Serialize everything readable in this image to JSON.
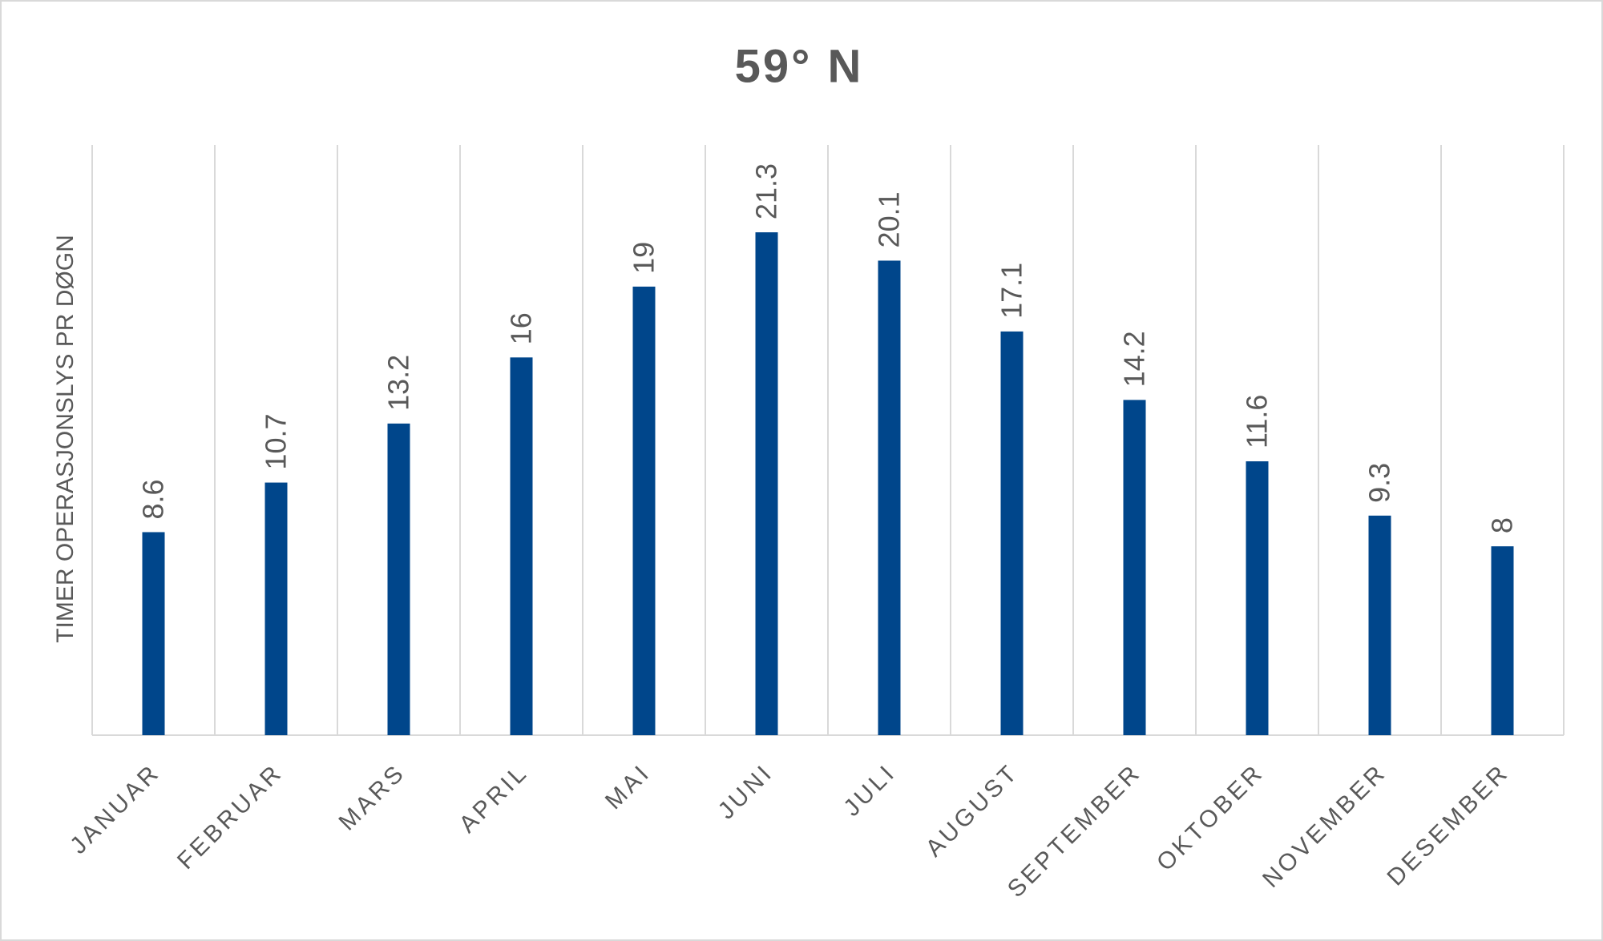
{
  "chart_data": {
    "type": "bar",
    "title": "59° N",
    "y_label": "TIMER OPERASJONSLYS PR DØGN",
    "categories": [
      "JANUAR",
      "FEBRUAR",
      "MARS",
      "APRIL",
      "MAI",
      "JUNI",
      "JULI",
      "AUGUST",
      "SEPTEMBER",
      "OKTOBER",
      "NOVEMBER",
      "DESEMBER"
    ],
    "values": [
      8.6,
      10.7,
      13.2,
      16,
      19,
      21.3,
      20.1,
      17.1,
      14.2,
      11.6,
      9.3,
      8
    ],
    "color": "#00468b",
    "ylim": [
      0,
      25
    ]
  }
}
